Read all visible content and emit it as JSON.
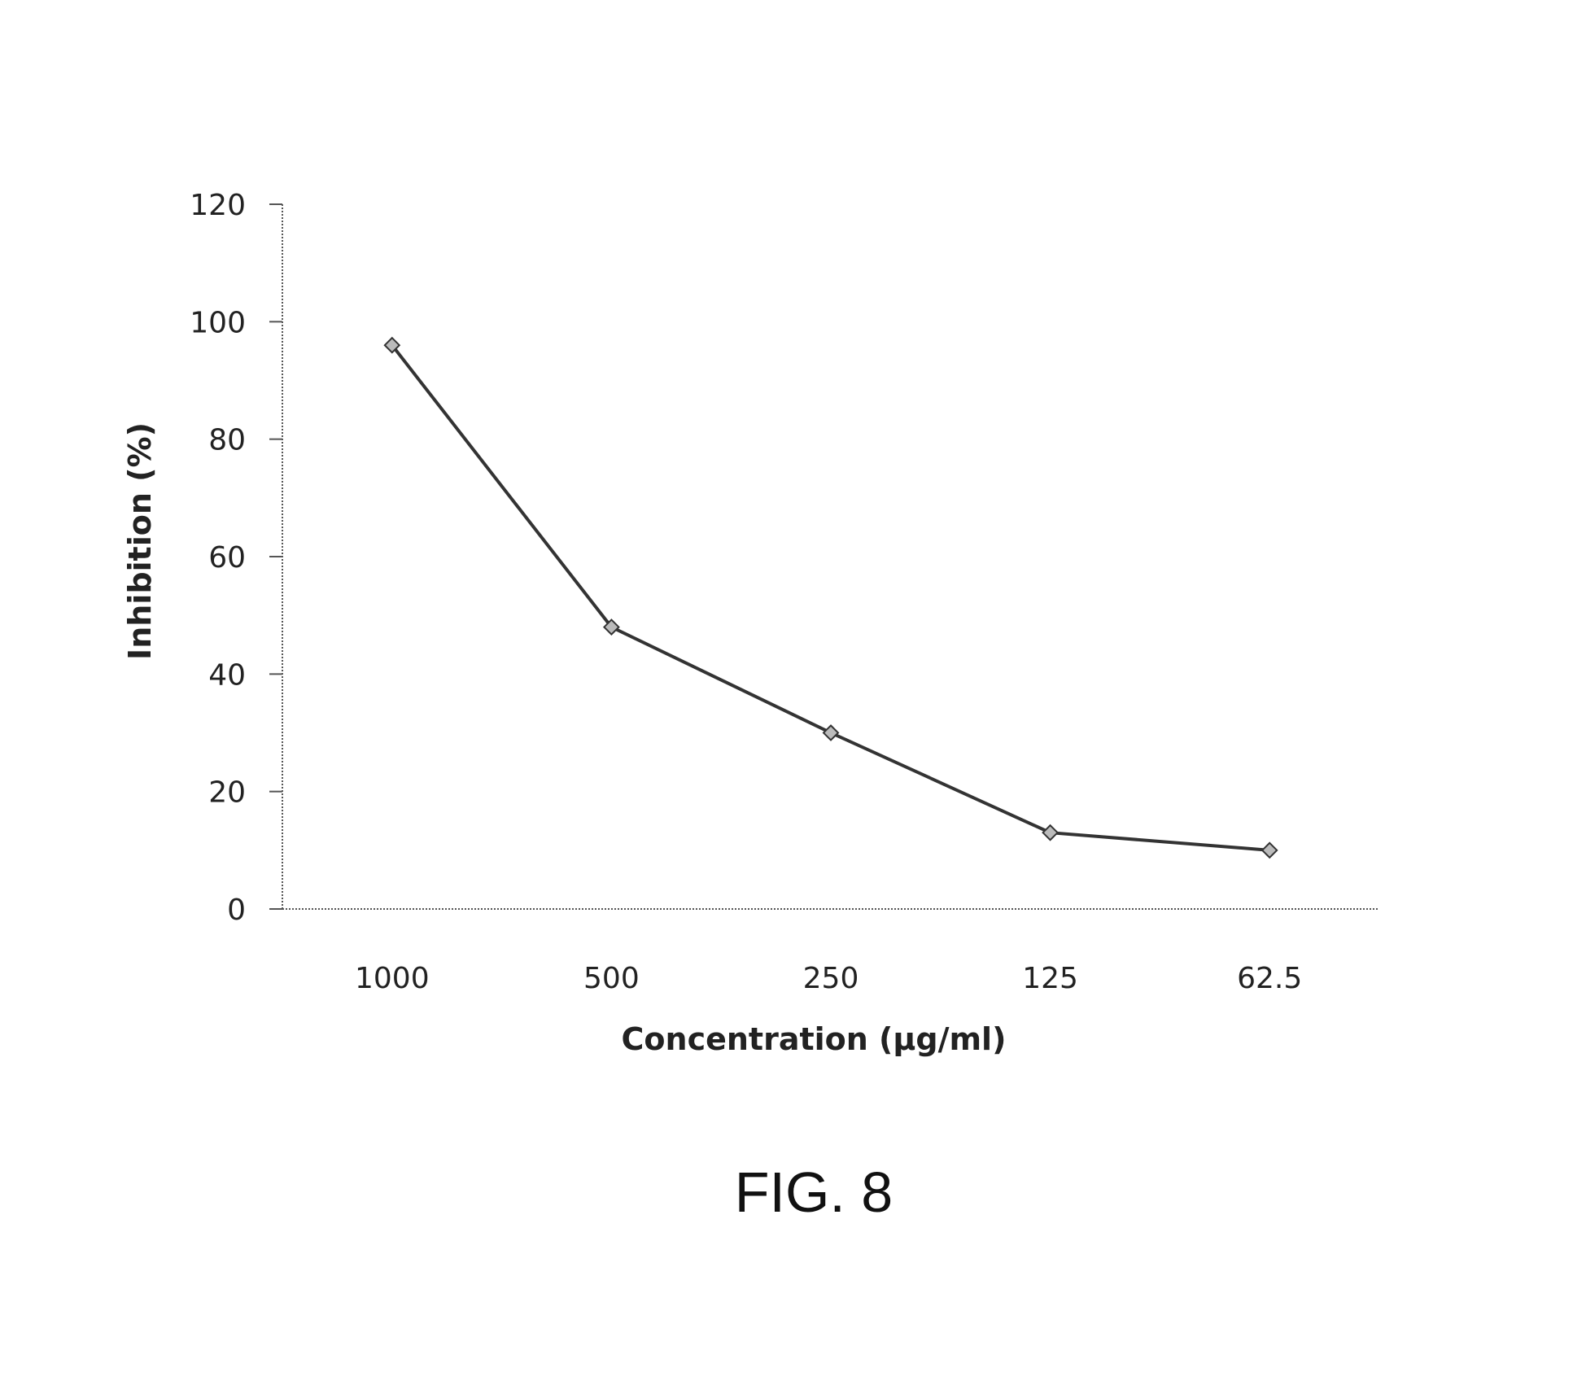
{
  "chart_data": {
    "type": "line",
    "categories": [
      "1000",
      "500",
      "250",
      "125",
      "62.5"
    ],
    "series": [
      {
        "values": [
          96,
          48,
          30,
          13,
          10
        ],
        "color": "#333333"
      }
    ],
    "xlabel": "Concentration (µg/ml)",
    "ylabel": "Inhibition (%)",
    "ylim": [
      0,
      120
    ],
    "yticks": [
      "0",
      "20",
      "40",
      "60",
      "80",
      "100",
      "120"
    ],
    "grid": false,
    "legend": "none"
  },
  "figure": {
    "caption": "FIG. 8"
  }
}
